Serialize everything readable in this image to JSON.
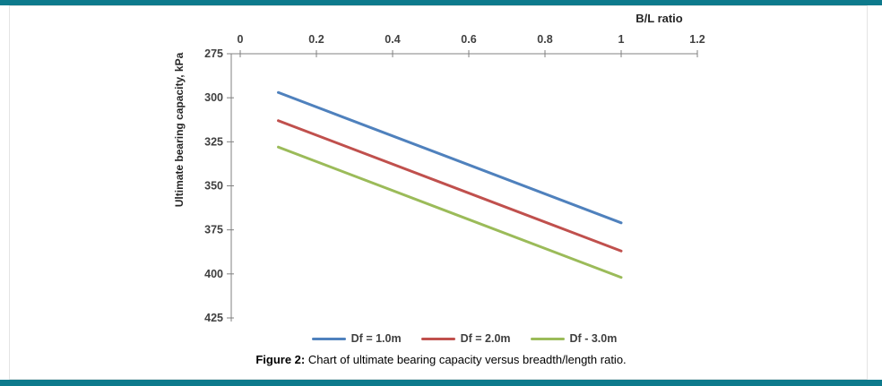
{
  "figure": {
    "caption_label": "Figure 2:",
    "caption_text": "Chart of ultimate bearing capacity versus breadth/length ratio."
  },
  "chart_data": {
    "type": "line",
    "title": "",
    "x_axis": {
      "label": "B/L ratio",
      "min": 0,
      "max": 1.2,
      "tick_labels": [
        "0",
        "0.2",
        "0.4",
        "0.6",
        "0.8",
        "1",
        "1.2"
      ],
      "position": "top"
    },
    "y_axis": {
      "label": "Ultimate bearing capacity, kPa",
      "min": 275,
      "max": 425,
      "tick_labels": [
        "275",
        "300",
        "325",
        "350",
        "375",
        "400",
        "425"
      ],
      "reversed": true,
      "note": "values increase downward"
    },
    "series": [
      {
        "name": "Df = 1.0m",
        "color": "#4F81BD",
        "points": [
          [
            0.1,
            297
          ],
          [
            1.0,
            371
          ]
        ]
      },
      {
        "name": "Df = 2.0m",
        "color": "#C0504D",
        "points": [
          [
            0.1,
            313
          ],
          [
            1.0,
            387
          ]
        ]
      },
      {
        "name": "Df - 3.0m",
        "color": "#9BBB59",
        "points": [
          [
            0.1,
            328
          ],
          [
            1.0,
            402
          ]
        ]
      }
    ],
    "legend_position": "bottom",
    "grid": false
  },
  "theme": {
    "band_color": "#0D7A8C",
    "axis_color": "#808080",
    "tick_text_color": "#404040"
  }
}
